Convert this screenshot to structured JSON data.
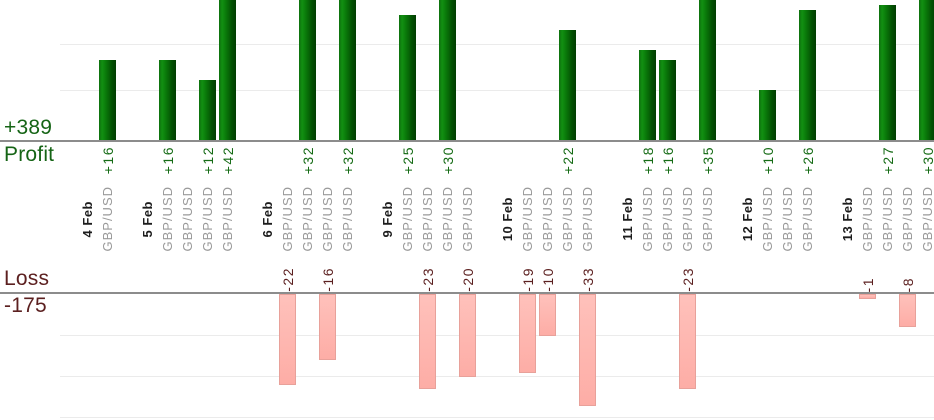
{
  "summary": {
    "profit_total_label": "+389",
    "profit_axis_label": "Profit",
    "loss_axis_label": "Loss",
    "loss_total_label": "-175"
  },
  "colors": {
    "profit_bar": "#0a6e0a",
    "profit_bar_dark": "#013e01",
    "profit_text": "#156415",
    "profit_value_text": "#156b15",
    "loss_bar_fill": "#ffb5af",
    "loss_bar_border": "#e8a19a",
    "loss_text": "#5c2020",
    "date_text": "#1c1c1c",
    "instrument_text": "#9a9a9a",
    "axis_line": "#8c8c8c",
    "gridline": "#ebebeb"
  },
  "chart_data": {
    "type": "bar",
    "instrument": "GBP/USD",
    "ylabel_top": "Profit",
    "ylabel_bottom": "Loss",
    "profit_total": 389,
    "loss_total": -175,
    "grid": true,
    "legend": false,
    "groups": [
      {
        "date": "4 Feb",
        "trades": [
          16
        ]
      },
      {
        "date": "5 Feb",
        "trades": [
          16,
          0,
          12,
          42
        ]
      },
      {
        "date": "6 Feb",
        "trades": [
          -22,
          32,
          -16,
          32
        ]
      },
      {
        "date": "9 Feb",
        "trades": [
          25,
          -23,
          30,
          -20
        ]
      },
      {
        "date": "10 Feb",
        "trades": [
          -19,
          -10,
          22,
          -33
        ]
      },
      {
        "date": "11 Feb",
        "trades": [
          18,
          16,
          -23,
          35
        ]
      },
      {
        "date": "12 Feb",
        "trades": [
          10,
          0,
          26
        ]
      },
      {
        "date": "13 Feb",
        "trades": [
          -1,
          27,
          -8,
          30
        ]
      }
    ]
  }
}
